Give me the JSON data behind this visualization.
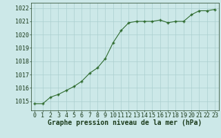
{
  "x": [
    0,
    1,
    2,
    3,
    4,
    5,
    6,
    7,
    8,
    9,
    10,
    11,
    12,
    13,
    14,
    15,
    16,
    17,
    18,
    19,
    20,
    21,
    22,
    23
  ],
  "y": [
    1014.8,
    1014.8,
    1015.3,
    1015.5,
    1015.8,
    1016.1,
    1016.5,
    1017.1,
    1017.5,
    1018.2,
    1019.4,
    1020.3,
    1020.9,
    1021.0,
    1021.0,
    1021.0,
    1021.1,
    1020.9,
    1021.0,
    1021.0,
    1021.5,
    1021.8,
    1021.8,
    1021.9
  ],
  "line_color": "#2d6a2d",
  "marker": "+",
  "marker_size": 3.5,
  "background_color": "#cce8e8",
  "grid_color": "#aacfcf",
  "xlabel": "Graphe pression niveau de la mer (hPa)",
  "xlabel_color": "#1a3a1a",
  "xlabel_fontsize": 7,
  "tick_color": "#1a3a1a",
  "tick_fontsize": 6,
  "ylim": [
    1014.3,
    1022.4
  ],
  "xlim": [
    -0.5,
    23.5
  ],
  "yticks": [
    1015,
    1016,
    1017,
    1018,
    1019,
    1020,
    1021,
    1022
  ],
  "xticks": [
    0,
    1,
    2,
    3,
    4,
    5,
    6,
    7,
    8,
    9,
    10,
    11,
    12,
    13,
    14,
    15,
    16,
    17,
    18,
    19,
    20,
    21,
    22,
    23
  ]
}
